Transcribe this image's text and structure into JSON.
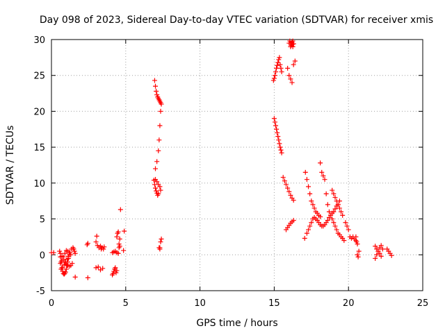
{
  "chart_data": {
    "type": "scatter",
    "title": "Day 098 of 2023, Sidereal Day-to-day VTEC variation (SDTVAR) for receiver xmis",
    "xlabel": "GPS time / hours",
    "ylabel": "SDTVAR / TECUs",
    "xlim": [
      0,
      25
    ],
    "ylim": [
      -5,
      30
    ],
    "xticks": [
      "0",
      "5",
      "10",
      "15",
      "20",
      "25"
    ],
    "yticks": [
      "-5",
      "0",
      "5",
      "10",
      "15",
      "20",
      "25",
      "30"
    ],
    "grid": true,
    "marker": "+",
    "color": "#ff0000",
    "series": [
      {
        "name": "SDTVAR",
        "x": [
          0.0,
          0.15,
          0.6,
          0.65,
          0.7,
          0.75,
          0.8,
          0.85,
          0.9,
          0.95,
          1.0,
          1.05,
          1.1,
          1.15,
          1.2,
          0.55,
          0.6,
          0.7,
          0.8,
          0.9,
          1.0,
          1.1,
          1.2,
          1.3,
          1.4,
          0.6,
          0.7,
          0.8,
          0.9,
          1.0,
          1.1,
          1.2,
          1.3,
          0.65,
          0.75,
          0.85,
          0.95,
          1.05,
          1.15,
          1.25,
          1.35,
          1.45,
          1.5,
          1.55,
          1.6,
          1.6,
          2.4,
          2.45,
          2.45,
          3.0,
          3.05,
          3.1,
          3.2,
          3.3,
          3.35,
          3.4,
          3.5,
          3.55,
          3.0,
          3.15,
          3.3,
          3.45,
          4.1,
          4.15,
          4.2,
          4.25,
          4.3,
          4.35,
          4.4,
          4.1,
          4.2,
          4.3,
          4.4,
          4.5,
          4.55,
          4.6,
          4.4,
          4.45,
          4.5,
          4.55,
          4.6,
          4.85,
          4.9,
          4.65,
          6.95,
          7.0,
          7.05,
          7.1,
          7.15,
          7.2,
          7.25,
          7.3,
          7.35,
          7.4,
          7.0,
          7.1,
          7.2,
          7.3,
          7.35,
          6.9,
          6.95,
          7.0,
          7.05,
          7.1,
          7.15,
          7.2,
          7.25,
          7.3,
          7.3,
          7.35,
          7.4,
          7.35,
          7.3,
          7.25,
          7.2,
          7.1,
          7.0,
          15.0,
          15.05,
          15.1,
          15.15,
          15.2,
          15.25,
          15.3,
          15.35,
          15.4,
          15.45,
          15.5,
          14.95,
          15.0,
          15.05,
          15.1,
          15.15,
          15.2,
          15.25,
          15.3,
          15.35,
          15.4,
          15.45,
          15.5,
          16.0,
          16.05,
          16.1,
          16.15,
          16.2,
          16.25,
          16.3,
          15.9,
          16.0,
          16.1,
          16.2,
          16.3,
          16.4,
          16.1,
          16.15,
          16.2,
          16.25,
          16.3,
          15.6,
          15.7,
          15.8,
          15.9,
          16.0,
          16.1,
          16.2,
          16.3,
          15.8,
          15.9,
          16.0,
          16.1,
          16.2,
          16.3,
          17.1,
          17.2,
          17.3,
          17.4,
          17.5,
          17.6,
          17.7,
          17.8,
          17.9,
          18.0,
          18.1,
          17.2,
          17.3,
          17.4,
          17.5,
          17.6,
          17.7,
          17.8,
          17.9,
          18.0,
          18.1,
          18.2,
          18.3,
          18.4,
          18.5,
          18.6,
          18.7,
          18.8,
          18.9,
          19.0,
          19.1,
          19.2,
          19.3,
          19.4,
          18.2,
          18.3,
          18.4,
          18.5,
          18.6,
          18.7,
          18.8,
          18.9,
          19.0,
          19.1,
          19.2,
          19.3,
          19.4,
          19.5,
          19.6,
          19.7,
          18.9,
          19.0,
          19.1,
          19.2,
          19.3,
          19.4,
          19.5,
          19.6,
          17.05,
          18.1,
          19.8,
          19.9,
          20.0,
          20.1,
          20.2,
          20.3,
          20.4,
          20.5,
          20.6,
          20.7,
          20.5,
          20.55,
          20.6,
          20.65,
          21.8,
          21.9,
          22.0,
          22.1,
          22.2,
          22.3,
          21.8,
          21.9,
          22.0,
          22.1,
          22.2,
          22.6,
          22.7,
          22.8,
          22.9
        ],
        "y": [
          0.3,
          0.3,
          -0.3,
          -1.0,
          -1.8,
          -2.3,
          -2.6,
          -2.7,
          -2.6,
          -2.4,
          -2.0,
          -1.5,
          -1.0,
          -0.5,
          0.0,
          0.5,
          0.2,
          -0.2,
          -0.6,
          -1.0,
          -1.3,
          -1.5,
          -1.6,
          -1.5,
          -1.2,
          -1.2,
          -0.8,
          -0.3,
          0.2,
          0.6,
          0.5,
          0.3,
          0.0,
          -2.0,
          -1.8,
          -1.4,
          -1.0,
          -0.6,
          -0.2,
          0.3,
          0.8,
          1.0,
          0.8,
          0.5,
          0.2,
          -3.1,
          1.4,
          1.6,
          -3.2,
          1.8,
          2.6,
          1.3,
          1.0,
          1.2,
          0.8,
          1.0,
          0.8,
          1.1,
          -1.8,
          -1.7,
          -2.1,
          -1.9,
          -2.8,
          -2.6,
          -2.3,
          -2.0,
          -1.8,
          -2.5,
          -2.2,
          0.3,
          0.4,
          0.5,
          0.3,
          0.2,
          1.5,
          2.2,
          2.5,
          3.0,
          3.2,
          1.0,
          1.2,
          0.6,
          3.3,
          6.3,
          24.3,
          23.5,
          22.8,
          22.3,
          22.0,
          21.8,
          21.6,
          21.4,
          21.2,
          21.0,
          10.5,
          10.2,
          9.8,
          9.5,
          9.0,
          10.4,
          9.8,
          9.3,
          8.9,
          8.6,
          8.3,
          8.5,
          1.0,
          0.8,
          1.0,
          1.8,
          2.2,
          20.0,
          18.0,
          16.0,
          14.5,
          13.0,
          12.0,
          19.0,
          18.5,
          18.0,
          17.5,
          17.0,
          16.5,
          16.0,
          15.5,
          15.0,
          14.6,
          14.2,
          24.3,
          24.6,
          25.0,
          25.5,
          26.0,
          26.4,
          26.8,
          27.2,
          27.5,
          26.5,
          26.0,
          25.5,
          29.5,
          29.8,
          29.5,
          29.2,
          29.6,
          29.8,
          29.4,
          26.0,
          25.0,
          24.5,
          24.0,
          26.5,
          27.0,
          29.0,
          29.5,
          29.3,
          29.0,
          29.4,
          10.8,
          10.3,
          9.8,
          9.3,
          8.8,
          8.3,
          7.9,
          7.6,
          3.5,
          3.8,
          4.1,
          4.4,
          4.6,
          4.8,
          11.5,
          10.5,
          9.5,
          8.5,
          7.5,
          7.0,
          6.5,
          6.0,
          5.8,
          5.5,
          5.3,
          3.0,
          3.5,
          4.0,
          4.5,
          5.0,
          5.2,
          5.0,
          4.8,
          4.5,
          4.2,
          4.0,
          4.0,
          4.2,
          4.5,
          4.8,
          5.2,
          5.5,
          5.8,
          6.0,
          6.4,
          6.8,
          7.0,
          7.5,
          11.5,
          11.0,
          10.5,
          8.5,
          7.0,
          6.0,
          5.5,
          5.0,
          4.5,
          4.0,
          3.5,
          3.0,
          2.8,
          2.5,
          2.3,
          2.0,
          9.0,
          8.5,
          8.0,
          7.5,
          7.0,
          6.5,
          6.0,
          5.5,
          2.3,
          12.8,
          4.5,
          4.0,
          3.5,
          2.5,
          2.3,
          2.5,
          2.2,
          2.0,
          1.5,
          0.5,
          2.5,
          1.8,
          0.0,
          -0.3,
          -0.5,
          0.0,
          0.5,
          1.0,
          1.3,
          0.8,
          1.2,
          0.8,
          0.5,
          0.2,
          -0.2,
          0.8,
          0.5,
          0.2,
          -0.1
        ]
      }
    ]
  }
}
